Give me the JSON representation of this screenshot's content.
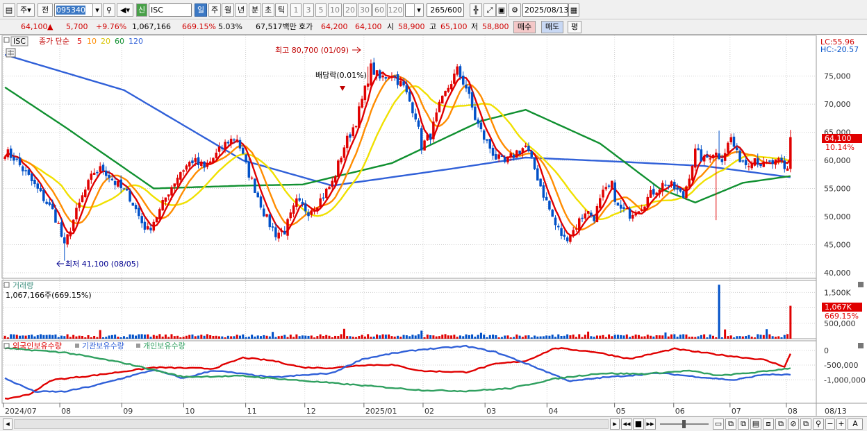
{
  "toolbar": {
    "market_type": "주",
    "period_btn": "전",
    "code": "095340",
    "badge": "신",
    "name": "ISC",
    "periods": [
      "일",
      "주",
      "월",
      "년",
      "분",
      "초",
      "틱"
    ],
    "intervals": [
      "1",
      "3",
      "5",
      "10",
      "20",
      "30",
      "60",
      "120"
    ],
    "count": "265",
    "count_max": "/600",
    "date": "2025/08/13"
  },
  "quote": {
    "price": "64,100",
    "arrow": "▲",
    "change": "5,700",
    "change_pct": "+9.76%",
    "volume": "1,067,166",
    "volume_ratio": "669.15%",
    "turnover": "5.03%",
    "amount": "67,517백만",
    "hoga_label": "호가",
    "ask": "64,200",
    "bid": "64,100",
    "open_label": "시",
    "open": "58,900",
    "high_label": "고",
    "high": "65,100",
    "low_label": "저",
    "low": "58,800",
    "buy_btn": "매수",
    "sell_btn": "매도",
    "eval_btn": "평"
  },
  "colors": {
    "up": "#e00000",
    "down": "#0050c8",
    "ma5": "#e00000",
    "ma10": "#ff8c00",
    "ma20": "#f0e000",
    "ma60": "#109030",
    "ma120": "#3060d8",
    "foreign": "#e00000",
    "inst": "#3060d8",
    "retail": "#30a060"
  },
  "chart_data": [
    {
      "type": "candlestick",
      "title": "ISC",
      "legend": {
        "label": "종가 단순",
        "periods": [
          "5",
          "10",
          "20",
          "60",
          "120"
        ]
      },
      "lc_label": "LC:55.96",
      "hc_label": "HC:-20.57",
      "y_ticks": [
        "75,000",
        "70,000",
        "65,000",
        "60,000",
        "55,000",
        "50,000",
        "45,000",
        "40,000"
      ],
      "ylim": [
        39500,
        81500
      ],
      "last_price_label": "64,100",
      "last_change_label": "10.14%",
      "annotations": {
        "high": "최고 80,700 (01/09)",
        "low": "최저 41,100 (08/05)",
        "dividend": "배당락(0.01%)"
      },
      "anchors": [
        [
          0,
          61500
        ],
        [
          3,
          60500
        ],
        [
          8,
          57000
        ],
        [
          12,
          54000
        ],
        [
          16,
          51000
        ],
        [
          18,
          48500
        ],
        [
          20,
          44500
        ],
        [
          22,
          48000
        ],
        [
          26,
          53500
        ],
        [
          30,
          58000
        ],
        [
          33,
          58500
        ],
        [
          37,
          56000
        ],
        [
          42,
          53500
        ],
        [
          46,
          49000
        ],
        [
          48,
          47500
        ],
        [
          52,
          51000
        ],
        [
          55,
          54500
        ],
        [
          59,
          58000
        ],
        [
          63,
          60000
        ],
        [
          67,
          58500
        ],
        [
          71,
          61000
        ],
        [
          75,
          63500
        ],
        [
          78,
          64000
        ],
        [
          81,
          59000
        ],
        [
          84,
          55000
        ],
        [
          88,
          49500
        ],
        [
          91,
          47000
        ],
        [
          94,
          47500
        ],
        [
          98,
          52500
        ],
        [
          102,
          51000
        ],
        [
          106,
          53000
        ],
        [
          110,
          56000
        ],
        [
          114,
          62500
        ],
        [
          118,
          67000
        ],
        [
          121,
          72500
        ],
        [
          123,
          76500
        ],
        [
          126,
          74500
        ],
        [
          130,
          75500
        ],
        [
          134,
          73000
        ],
        [
          138,
          68000
        ],
        [
          140,
          62500
        ],
        [
          143,
          64500
        ],
        [
          146,
          69500
        ],
        [
          149,
          73000
        ],
        [
          152,
          76000
        ],
        [
          155,
          73000
        ],
        [
          158,
          67500
        ],
        [
          161,
          64000
        ],
        [
          165,
          60500
        ],
        [
          168,
          59500
        ],
        [
          172,
          61500
        ],
        [
          175,
          62500
        ],
        [
          178,
          58500
        ],
        [
          181,
          54000
        ],
        [
          185,
          48500
        ],
        [
          188,
          46000
        ],
        [
          191,
          47500
        ],
        [
          195,
          51000
        ],
        [
          198,
          50000
        ],
        [
          201,
          54000
        ],
        [
          204,
          55500
        ],
        [
          206,
          51500
        ],
        [
          210,
          50500
        ],
        [
          214,
          52000
        ],
        [
          218,
          54500
        ],
        [
          222,
          56000
        ],
        [
          225,
          55000
        ],
        [
          228,
          53500
        ],
        [
          230,
          57500
        ],
        [
          232,
          61500
        ],
        [
          235,
          60000
        ],
        [
          238,
          61500
        ],
        [
          241,
          60500
        ],
        [
          244,
          64000
        ],
        [
          246,
          61000
        ],
        [
          249,
          59500
        ],
        [
          252,
          60500
        ],
        [
          255,
          59000
        ],
        [
          258,
          59500
        ],
        [
          261,
          59500
        ],
        [
          262,
          58200
        ],
        [
          263,
          58400
        ],
        [
          264,
          64100
        ]
      ],
      "ma_anchors": {
        "ma120": [
          [
            0,
            78800
          ],
          [
            40,
            72500
          ],
          [
            80,
            60000
          ],
          [
            110,
            55500
          ],
          [
            150,
            58500
          ],
          [
            175,
            60500
          ],
          [
            205,
            59800
          ],
          [
            235,
            59000
          ],
          [
            264,
            57000
          ]
        ],
        "ma60": [
          [
            0,
            73000
          ],
          [
            20,
            66000
          ],
          [
            50,
            55000
          ],
          [
            80,
            55500
          ],
          [
            100,
            55700
          ],
          [
            130,
            59500
          ],
          [
            160,
            67000
          ],
          [
            175,
            69000
          ],
          [
            200,
            63000
          ],
          [
            220,
            55000
          ],
          [
            232,
            52500
          ],
          [
            248,
            56000
          ],
          [
            264,
            57200
          ]
        ]
      }
    },
    {
      "type": "bar",
      "title": "거래량",
      "info": "1,067,166주(669.15%)",
      "y_ticks": [
        "1,500K",
        "1,000K",
        "500,000"
      ],
      "ylim": [
        0,
        1800
      ],
      "last_label": "1,067K",
      "last_pct_label": "669.15%",
      "spikes": [
        [
          32,
          280
        ],
        [
          48,
          140
        ],
        [
          90,
          220
        ],
        [
          114,
          320
        ],
        [
          140,
          260
        ],
        [
          160,
          190
        ],
        [
          196,
          230
        ],
        [
          222,
          200
        ],
        [
          240,
          1750
        ],
        [
          242,
          300
        ],
        [
          256,
          310
        ],
        [
          264,
          1067
        ]
      ]
    },
    {
      "type": "line",
      "series": [
        {
          "name": "외국인보유수량",
          "anchors": [
            [
              0,
              -1650
            ],
            [
              8,
              -1500
            ],
            [
              16,
              -1000
            ],
            [
              30,
              -850
            ],
            [
              50,
              -580
            ],
            [
              70,
              -620
            ],
            [
              80,
              -250
            ],
            [
              90,
              -350
            ],
            [
              100,
              -580
            ],
            [
              110,
              -600
            ],
            [
              120,
              -500
            ],
            [
              130,
              -490
            ],
            [
              140,
              -700
            ],
            [
              155,
              -740
            ],
            [
              165,
              -460
            ],
            [
              175,
              -360
            ],
            [
              185,
              80
            ],
            [
              198,
              -50
            ],
            [
              210,
              -290
            ],
            [
              225,
              50
            ],
            [
              240,
              -150
            ],
            [
              255,
              -320
            ],
            [
              262,
              -550
            ],
            [
              264,
              -120
            ]
          ]
        },
        {
          "name": "기관보유수량",
          "anchors": [
            [
              0,
              -950
            ],
            [
              10,
              -1400
            ],
            [
              20,
              -1400
            ],
            [
              30,
              -1200
            ],
            [
              50,
              -660
            ],
            [
              60,
              -950
            ],
            [
              70,
              -680
            ],
            [
              90,
              -920
            ],
            [
              110,
              -770
            ],
            [
              120,
              -300
            ],
            [
              130,
              -110
            ],
            [
              140,
              30
            ],
            [
              155,
              140
            ],
            [
              165,
              -60
            ],
            [
              175,
              -440
            ],
            [
              190,
              -1050
            ],
            [
              200,
              -930
            ],
            [
              220,
              -770
            ],
            [
              235,
              -920
            ],
            [
              245,
              -1010
            ],
            [
              255,
              -820
            ],
            [
              264,
              -830
            ]
          ]
        },
        {
          "name": "개인보유수량",
          "anchors": [
            [
              0,
              70
            ],
            [
              20,
              -70
            ],
            [
              40,
              -430
            ],
            [
              60,
              -900
            ],
            [
              80,
              -870
            ],
            [
              100,
              -1030
            ],
            [
              120,
              -1190
            ],
            [
              140,
              -1350
            ],
            [
              155,
              -1380
            ],
            [
              170,
              -1290
            ],
            [
              185,
              -960
            ],
            [
              200,
              -780
            ],
            [
              215,
              -800
            ],
            [
              230,
              -690
            ],
            [
              240,
              -860
            ],
            [
              255,
              -720
            ],
            [
              264,
              -600
            ]
          ]
        }
      ],
      "y_ticks": [
        "0",
        "-500,000",
        "-1,000,000"
      ],
      "ylim": [
        -1700,
        230
      ]
    }
  ],
  "x_axis": {
    "labels": [
      "2024/07",
      "08",
      "09",
      "10",
      "11",
      "12",
      "2025/01",
      "02",
      "03",
      "04",
      "05",
      "06",
      "07",
      "08"
    ],
    "positions": [
      0,
      20,
      42,
      64,
      86,
      107,
      128,
      149,
      171,
      193,
      217,
      238,
      258,
      278
    ],
    "end_label": "08/13"
  }
}
